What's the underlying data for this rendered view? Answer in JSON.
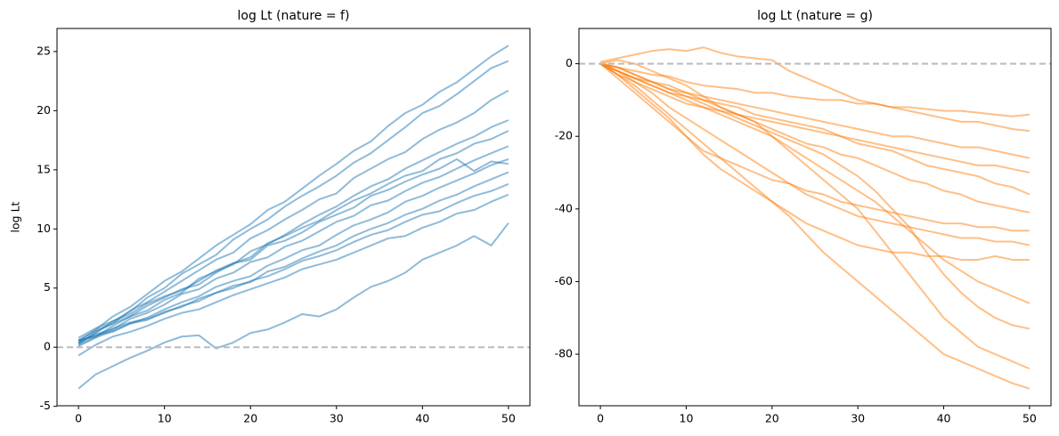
{
  "chart_data": [
    {
      "type": "line",
      "title": "log Lt (nature = f)",
      "ylabel": "log Lt",
      "color": "#1f77b4",
      "opacity": 0.5,
      "x": [
        0,
        2,
        4,
        6,
        8,
        10,
        12,
        14,
        16,
        18,
        20,
        22,
        24,
        26,
        28,
        30,
        32,
        34,
        36,
        38,
        40,
        42,
        44,
        46,
        48,
        50
      ],
      "xlim": [
        -2.5,
        52.5
      ],
      "ylim": [
        -4.95,
        26.95
      ],
      "xticks": [
        0,
        10,
        20,
        30,
        40,
        50
      ],
      "yticks": [
        -5,
        0,
        5,
        10,
        15,
        20,
        25
      ],
      "hline": 0,
      "series": [
        {
          "values": [
            0.5,
            1.5,
            2.6,
            3.4,
            4.5,
            5.6,
            6.4,
            7.5,
            8.6,
            9.5,
            10.4,
            11.6,
            12.3,
            13.4,
            14.5,
            15.5,
            16.6,
            17.4,
            18.7,
            19.8,
            20.5,
            21.6,
            22.4,
            23.5,
            24.6,
            25.5
          ]
        },
        {
          "values": [
            0.3,
            1.2,
            2.2,
            3.0,
            4.2,
            5.0,
            6.2,
            7.0,
            7.8,
            9.1,
            10.0,
            10.8,
            11.9,
            12.8,
            13.6,
            14.5,
            15.6,
            16.4,
            17.5,
            18.6,
            19.8,
            20.4,
            21.4,
            22.5,
            23.6,
            24.2
          ]
        },
        {
          "values": [
            0.6,
            1.4,
            2.0,
            3.1,
            3.8,
            4.7,
            5.6,
            6.5,
            7.4,
            8.0,
            9.2,
            9.9,
            10.8,
            11.6,
            12.5,
            13.0,
            14.3,
            15.1,
            15.9,
            16.5,
            17.6,
            18.4,
            19.0,
            19.8,
            20.9,
            21.7
          ]
        },
        {
          "values": [
            0.2,
            0.9,
            1.8,
            2.6,
            3.1,
            4.0,
            4.6,
            5.8,
            6.4,
            7.0,
            8.1,
            8.7,
            9.5,
            10.4,
            11.2,
            11.9,
            12.8,
            13.6,
            14.2,
            15.1,
            15.8,
            16.5,
            17.2,
            17.8,
            18.6,
            19.2
          ]
        },
        {
          "values": [
            0.8,
            1.6,
            2.2,
            2.8,
            3.7,
            4.3,
            4.8,
            5.6,
            6.5,
            7.1,
            7.6,
            8.8,
            9.4,
            10.1,
            10.7,
            11.6,
            12.4,
            13.0,
            13.8,
            14.5,
            14.9,
            15.9,
            16.4,
            17.2,
            17.6,
            18.3
          ]
        },
        {
          "values": [
            0.4,
            1.1,
            1.5,
            2.4,
            2.9,
            3.6,
            4.5,
            4.9,
            5.8,
            6.3,
            7.2,
            7.6,
            8.5,
            9.0,
            9.8,
            10.6,
            11.1,
            12.0,
            12.4,
            13.2,
            13.9,
            14.4,
            15.1,
            15.8,
            16.4,
            17.0
          ]
        },
        {
          "values": [
            0.1,
            0.8,
            1.4,
            2.0,
            2.5,
            3.2,
            3.8,
            4.3,
            5.1,
            5.6,
            6.0,
            6.9,
            7.5,
            8.2,
            8.6,
            9.5,
            10.3,
            10.8,
            11.4,
            12.3,
            12.8,
            13.5,
            14.1,
            14.7,
            15.4,
            15.9
          ]
        },
        {
          "values": [
            0.5,
            1.0,
            1.3,
            2.0,
            2.3,
            3.0,
            3.4,
            4.1,
            4.6,
            5.2,
            5.5,
            6.4,
            6.8,
            7.5,
            8.1,
            8.6,
            9.4,
            10.0,
            10.5,
            11.2,
            11.7,
            12.4,
            12.9,
            13.6,
            14.2,
            14.8
          ]
        },
        {
          "values": [
            0.6,
            0.9,
            1.6,
            2.1,
            2.4,
            2.9,
            3.5,
            3.9,
            4.6,
            5.0,
            5.6,
            6.0,
            6.6,
            7.3,
            7.7,
            8.2,
            8.9,
            9.5,
            9.9,
            10.6,
            11.2,
            11.5,
            12.2,
            12.8,
            13.2,
            13.8
          ]
        },
        {
          "values": [
            -0.7,
            0.2,
            0.9,
            1.3,
            1.8,
            2.4,
            2.9,
            3.2,
            3.8,
            4.4,
            4.9,
            5.4,
            5.9,
            6.6,
            7.0,
            7.4,
            8.0,
            8.6,
            9.2,
            9.4,
            10.1,
            10.6,
            11.3,
            11.6,
            12.3,
            12.9
          ]
        },
        {
          "values": [
            -3.5,
            -2.3,
            -1.6,
            -0.9,
            -0.3,
            0.4,
            0.9,
            1.0,
            -0.1,
            0.4,
            1.2,
            1.5,
            2.1,
            2.8,
            2.6,
            3.2,
            4.2,
            5.1,
            5.6,
            6.3,
            7.4,
            8.0,
            8.6,
            9.4,
            8.6,
            10.5
          ]
        },
        {
          "values": [
            0.3,
            1.3,
            2.0,
            2.6,
            3.5,
            4.2,
            4.9,
            5.3,
            6.3,
            7.1,
            7.4,
            8.6,
            9.0,
            9.7,
            10.6,
            11.2,
            11.8,
            12.8,
            13.3,
            14.0,
            14.6,
            15.1,
            15.9,
            14.9,
            15.7,
            15.5
          ]
        }
      ]
    },
    {
      "type": "line",
      "title": "log Lt (nature = g)",
      "color": "#ff7f0e",
      "opacity": 0.5,
      "x": [
        0,
        2,
        4,
        6,
        8,
        10,
        12,
        14,
        16,
        18,
        20,
        22,
        24,
        26,
        28,
        30,
        32,
        34,
        36,
        38,
        40,
        42,
        44,
        46,
        48,
        50
      ],
      "xlim": [
        -2.5,
        52.5
      ],
      "ylim": [
        -94.2,
        9.7
      ],
      "xticks": [
        0,
        10,
        20,
        30,
        40,
        50
      ],
      "yticks": [
        -80,
        -60,
        -40,
        -20,
        0
      ],
      "hline": 0,
      "series": [
        {
          "values": [
            0,
            -1,
            -2,
            -3,
            -3.5,
            -5,
            -6,
            -6.5,
            -7,
            -8,
            -8,
            -9,
            -9.5,
            -10,
            -10,
            -11,
            -11,
            -12,
            -12,
            -12.5,
            -13,
            -13,
            -13.5,
            -14,
            -14.5,
            -14
          ]
        },
        {
          "values": [
            0.5,
            1.5,
            2.5,
            3.5,
            4,
            3.5,
            4.5,
            3,
            2,
            1.5,
            1,
            -2,
            -4,
            -6,
            -8,
            -10,
            -11,
            -12,
            -13,
            -14,
            -15,
            -16,
            -16,
            -17,
            -18,
            -18.5
          ]
        },
        {
          "values": [
            0,
            -2,
            -4,
            -5,
            -6,
            -8,
            -9,
            -10,
            -11,
            -12,
            -13,
            -14,
            -15,
            -16,
            -17,
            -18,
            -19,
            -20,
            -20,
            -21,
            -22,
            -23,
            -23,
            -24,
            -25,
            -26
          ]
        },
        {
          "values": [
            0,
            -3,
            -5,
            -7,
            -9,
            -11,
            -12,
            -13,
            -14,
            -15,
            -16,
            -17,
            -18,
            -19,
            -20,
            -21,
            -22,
            -23,
            -24,
            -25,
            -26,
            -27,
            -28,
            -28,
            -29,
            -30
          ]
        },
        {
          "values": [
            0,
            -2,
            -4,
            -6,
            -8,
            -9,
            -10,
            -11,
            -12,
            -14,
            -15,
            -16,
            -17,
            -18,
            -20,
            -22,
            -23,
            -24,
            -26,
            -28,
            -29,
            -30,
            -31,
            -33,
            -34,
            -36
          ]
        },
        {
          "values": [
            0,
            -1,
            -3,
            -5,
            -7,
            -8,
            -10,
            -12,
            -14,
            -16,
            -18,
            -20,
            -22,
            -23,
            -25,
            -26,
            -28,
            -30,
            -32,
            -33,
            -35,
            -36,
            -38,
            -39,
            -40,
            -41
          ]
        },
        {
          "values": [
            0,
            -4,
            -8,
            -12,
            -16,
            -20,
            -24,
            -26,
            -28,
            -30,
            -32,
            -33,
            -35,
            -36,
            -38,
            -39,
            -40,
            -41,
            -42,
            -43,
            -44,
            -44,
            -45,
            -45,
            -46,
            -46
          ]
        },
        {
          "values": [
            0,
            -2,
            -5,
            -8,
            -12,
            -15,
            -18,
            -21,
            -24,
            -27,
            -30,
            -33,
            -36,
            -38,
            -40,
            -42,
            -43,
            -44,
            -45,
            -46,
            -47,
            -48,
            -48,
            -49,
            -49,
            -50
          ]
        },
        {
          "values": [
            0,
            -3,
            -7,
            -11,
            -15,
            -20,
            -25,
            -29,
            -32,
            -35,
            -38,
            -41,
            -44,
            -46,
            -48,
            -50,
            -51,
            -52,
            -52,
            -53,
            -53,
            -54,
            -54,
            -53,
            -54,
            -54
          ]
        },
        {
          "values": [
            0,
            -2,
            -4,
            -6,
            -8,
            -10,
            -12,
            -14,
            -16,
            -18,
            -20,
            -23,
            -26,
            -29,
            -32,
            -35,
            -38,
            -42,
            -46,
            -50,
            -54,
            -57,
            -60,
            -62,
            -64,
            -66
          ]
        },
        {
          "values": [
            0,
            -1,
            -3,
            -5,
            -7,
            -9,
            -11,
            -13,
            -15,
            -17,
            -19,
            -21,
            -23,
            -25,
            -28,
            -31,
            -35,
            -40,
            -45,
            -52,
            -58,
            -63,
            -67,
            -70,
            -72,
            -73
          ]
        },
        {
          "values": [
            0,
            -3,
            -6,
            -10,
            -14,
            -18,
            -22,
            -26,
            -30,
            -34,
            -38,
            -42,
            -47,
            -52,
            -56,
            -60,
            -64,
            -68,
            -72,
            -76,
            -80,
            -82,
            -84,
            -86,
            -88,
            -89.5
          ]
        },
        {
          "values": [
            0,
            1,
            0,
            -2,
            -4,
            -6,
            -9,
            -12,
            -14,
            -16,
            -20,
            -24,
            -28,
            -32,
            -36,
            -40,
            -46,
            -52,
            -58,
            -64,
            -70,
            -74,
            -78,
            -80,
            -82,
            -84
          ]
        }
      ]
    }
  ]
}
